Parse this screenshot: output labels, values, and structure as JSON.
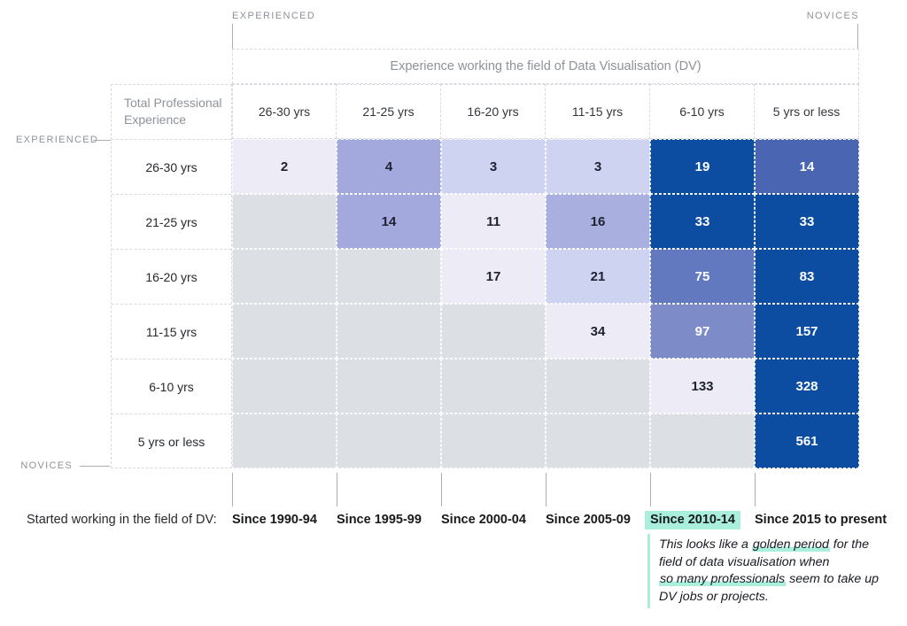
{
  "palette": {
    "dark_blue": "#0C4DA2",
    "mint_highlight": "#AAEFDC",
    "empty_cell": "#DCE0E4",
    "grey_label": "#8E9299",
    "axis_tick": "#A9ADB4"
  },
  "top_axis": {
    "left_label": "EXPERIENCED",
    "right_label": "NOVICES",
    "title": "Experience working the field of Data Visualisation (DV)"
  },
  "left_axis": {
    "top_label": "EXPERIENCED",
    "bottom_label": "NOVICES",
    "header": "Total Professional Experience"
  },
  "bottom_axis": {
    "label": "Started working in the field of DV:"
  },
  "annotation": {
    "lines": [
      [
        {
          "text": "This looks like a ",
          "highlight": false
        },
        {
          "text": "golden period",
          "highlight": true
        },
        {
          "text": " for the",
          "highlight": false
        }
      ],
      [
        {
          "text": "field of data visualisation when",
          "highlight": false
        }
      ],
      [
        {
          "text": "so many professionals",
          "highlight": true
        },
        {
          "text": " seem to take up",
          "highlight": false
        }
      ],
      [
        {
          "text": "DV jobs or projects.",
          "highlight": false
        }
      ]
    ]
  },
  "chart_data": {
    "type": "heatmap",
    "title": "Experience working the field of Data Visualisation (DV)",
    "row_axis_title": "Total Professional Experience",
    "col_axis_note": "Started working in the field of DV:",
    "columns": [
      "26-30 yrs",
      "21-25 yrs",
      "16-20 yrs",
      "11-15 yrs",
      "6-10 yrs",
      "5 yrs or less"
    ],
    "rows": [
      "26-30 yrs",
      "21-25 yrs",
      "16-20 yrs",
      "11-15 yrs",
      "6-10 yrs",
      "5 yrs or less"
    ],
    "bottom_labels": [
      "Since 1990-94",
      "Since 1995-99",
      "Since 2000-04",
      "Since 2005-09",
      "Since 2010-14",
      "Since 2015 to present"
    ],
    "highlighted_bottom_label": "Since 2010-14",
    "values": [
      [
        2,
        4,
        3,
        3,
        19,
        14
      ],
      [
        null,
        14,
        11,
        16,
        33,
        33
      ],
      [
        null,
        null,
        17,
        21,
        75,
        83
      ],
      [
        null,
        null,
        null,
        34,
        97,
        157
      ],
      [
        null,
        null,
        null,
        null,
        133,
        328
      ],
      [
        null,
        null,
        null,
        null,
        null,
        561
      ]
    ],
    "cell_colors": [
      [
        "#ECEBF6",
        "#A3A9DD",
        "#CDD3F0",
        "#CDD3F0",
        "#0C4DA2",
        "#4A66B2"
      ],
      [
        null,
        "#A3A9DD",
        "#ECEBF6",
        "#A9AFDE",
        "#0C4DA2",
        "#0C4DA2"
      ],
      [
        null,
        null,
        "#ECEBF6",
        "#CDD3F0",
        "#6379BF",
        "#0C4DA2"
      ],
      [
        null,
        null,
        null,
        "#ECEBF6",
        "#7E8BC9",
        "#0C4DA2"
      ],
      [
        null,
        null,
        null,
        null,
        "#ECEBF6",
        "#0C4DA2"
      ],
      [
        null,
        null,
        null,
        null,
        null,
        "#0C4DA2"
      ]
    ],
    "empty_cell_color": "#DCE0E4"
  }
}
